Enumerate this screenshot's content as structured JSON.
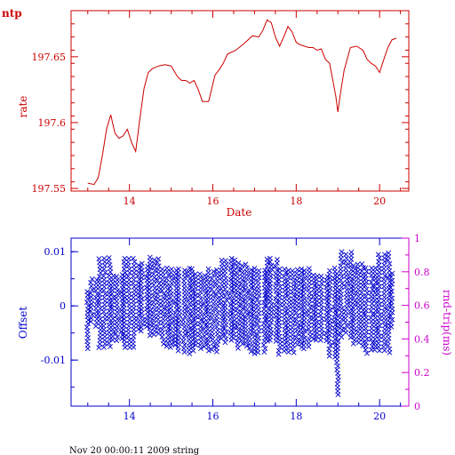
{
  "header": {
    "name": "ntp"
  },
  "footer": {
    "text": "Nov 20 00:00:11 2009 string"
  },
  "colors": {
    "rate": "#cc0000",
    "offset": "#0000cc",
    "rtt": "#cc00cc",
    "background": "#ffffff"
  },
  "chart_data": [
    {
      "type": "line",
      "title": "",
      "xlabel": "Date",
      "ylabel": "rate",
      "xlim": [
        12.6,
        20.7
      ],
      "ylim": [
        197.548,
        197.685
      ],
      "x_ticks": [
        14,
        16,
        18,
        20
      ],
      "y_ticks": [
        {
          "value": 197.55,
          "label": "197.55"
        },
        {
          "value": 197.6,
          "label": "197.6"
        },
        {
          "value": 197.65,
          "label": "197.65"
        }
      ],
      "series": [
        {
          "x": [
            13.0,
            13.15,
            13.25,
            13.35,
            13.45,
            13.55,
            13.65,
            13.75,
            13.85,
            13.95,
            14.05,
            14.15,
            14.25,
            14.35,
            14.45,
            14.55,
            14.7,
            14.85,
            15.0,
            15.15,
            15.25,
            15.35,
            15.45,
            15.55,
            15.65,
            15.75,
            15.9,
            16.05,
            16.15,
            16.25,
            16.35,
            16.55,
            16.75,
            16.95,
            17.1,
            17.2,
            17.3,
            17.4,
            17.5,
            17.6,
            17.7,
            17.8,
            17.9,
            18.0,
            18.1,
            18.2,
            18.3,
            18.4,
            18.5,
            18.6,
            18.7,
            18.8,
            18.95,
            19.0,
            19.05,
            19.15,
            19.3,
            19.45,
            19.6,
            19.7,
            19.8,
            19.9,
            20.0,
            20.1,
            20.2,
            20.3,
            20.4
          ],
          "values": [
            197.554,
            197.553,
            197.558,
            197.575,
            197.595,
            197.606,
            197.592,
            197.588,
            197.59,
            197.595,
            197.585,
            197.578,
            197.603,
            197.626,
            197.638,
            197.641,
            197.643,
            197.644,
            197.643,
            197.635,
            197.632,
            197.632,
            197.63,
            197.632,
            197.625,
            197.616,
            197.616,
            197.636,
            197.64,
            197.645,
            197.652,
            197.655,
            197.66,
            197.666,
            197.665,
            197.67,
            197.678,
            197.676,
            197.665,
            197.658,
            197.665,
            197.673,
            197.669,
            197.661,
            197.659,
            197.658,
            197.657,
            197.657,
            197.655,
            197.656,
            197.648,
            197.645,
            197.62,
            197.608,
            197.62,
            197.64,
            197.657,
            197.658,
            197.655,
            197.648,
            197.645,
            197.643,
            197.638,
            197.648,
            197.657,
            197.663,
            197.664
          ]
        }
      ]
    },
    {
      "type": "scatter",
      "title": "",
      "xlabel": "",
      "ylabel": "Offset",
      "y2label": "rnd-trip(ms)",
      "xlim": [
        12.6,
        20.7
      ],
      "ylim": [
        -0.0185,
        0.0125
      ],
      "y2lim": [
        0,
        1
      ],
      "x_ticks": [
        14,
        16,
        18,
        20
      ],
      "y_ticks": [
        {
          "value": 0.01,
          "label": "0.01"
        },
        {
          "value": 0,
          "label": "0"
        },
        {
          "value": -0.01,
          "label": "-0.01"
        }
      ],
      "y2_ticks": [
        {
          "value": 0,
          "label": "0"
        },
        {
          "value": 0.2,
          "label": "0.2"
        },
        {
          "value": 0.4,
          "label": "0.4"
        },
        {
          "value": 0.6,
          "label": "0.6"
        },
        {
          "value": 0.8,
          "label": "0.8"
        },
        {
          "value": 1,
          "label": "1"
        }
      ],
      "marker": "x",
      "bands": [
        {
          "x0": 13.0,
          "x1": 13.1,
          "hi": 0.003,
          "lo": -0.008
        },
        {
          "x0": 13.1,
          "x1": 13.3,
          "hi": 0.005,
          "lo": -0.004
        },
        {
          "x0": 13.3,
          "x1": 13.6,
          "hi": 0.009,
          "lo": -0.008
        },
        {
          "x0": 13.6,
          "x1": 13.9,
          "hi": 0.006,
          "lo": -0.007
        },
        {
          "x0": 13.9,
          "x1": 14.2,
          "hi": 0.009,
          "lo": -0.008
        },
        {
          "x0": 14.2,
          "x1": 14.5,
          "hi": 0.008,
          "lo": -0.005
        },
        {
          "x0": 14.5,
          "x1": 14.8,
          "hi": 0.009,
          "lo": -0.006
        },
        {
          "x0": 14.8,
          "x1": 15.2,
          "hi": 0.007,
          "lo": -0.008
        },
        {
          "x0": 15.2,
          "x1": 15.6,
          "hi": 0.007,
          "lo": -0.009
        },
        {
          "x0": 15.6,
          "x1": 15.9,
          "hi": 0.006,
          "lo": -0.008
        },
        {
          "x0": 15.9,
          "x1": 16.2,
          "hi": 0.007,
          "lo": -0.009
        },
        {
          "x0": 16.2,
          "x1": 16.6,
          "hi": 0.009,
          "lo": -0.007
        },
        {
          "x0": 16.6,
          "x1": 16.9,
          "hi": 0.008,
          "lo": -0.008
        },
        {
          "x0": 16.9,
          "x1": 17.3,
          "hi": 0.007,
          "lo": -0.009
        },
        {
          "x0": 17.3,
          "x1": 17.6,
          "hi": 0.009,
          "lo": -0.007
        },
        {
          "x0": 17.6,
          "x1": 18.0,
          "hi": 0.007,
          "lo": -0.009
        },
        {
          "x0": 18.0,
          "x1": 18.4,
          "hi": 0.007,
          "lo": -0.008
        },
        {
          "x0": 18.4,
          "x1": 18.8,
          "hi": 0.006,
          "lo": -0.007
        },
        {
          "x0": 18.8,
          "x1": 19.0,
          "hi": 0.007,
          "lo": -0.01
        },
        {
          "x0": 19.0,
          "x1": 19.1,
          "hi": 0.006,
          "lo": -0.017
        },
        {
          "x0": 19.1,
          "x1": 19.4,
          "hi": 0.01,
          "lo": -0.006
        },
        {
          "x0": 19.4,
          "x1": 19.7,
          "hi": 0.008,
          "lo": -0.008
        },
        {
          "x0": 19.7,
          "x1": 20.0,
          "hi": 0.007,
          "lo": -0.009
        },
        {
          "x0": 20.0,
          "x1": 20.3,
          "hi": 0.01,
          "lo": -0.009
        },
        {
          "x0": 20.3,
          "x1": 20.4,
          "hi": 0.006,
          "lo": -0.005
        }
      ]
    }
  ]
}
